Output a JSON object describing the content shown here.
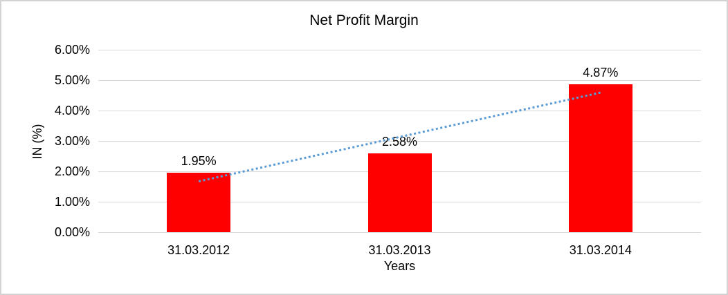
{
  "chart_data": {
    "type": "bar",
    "title": "Net Profit Margin",
    "xlabel": "Years",
    "ylabel": "IN (%)",
    "categories": [
      "31.03.2012",
      "31.03.2013",
      "31.03.2014"
    ],
    "values": [
      1.95,
      2.58,
      4.87
    ],
    "data_labels": [
      "1.95%",
      "2.58%",
      "4.87%"
    ],
    "ytick_labels": [
      "0.00%",
      "1.00%",
      "2.00%",
      "3.00%",
      "4.00%",
      "5.00%",
      "6.00%"
    ],
    "ylim": [
      0,
      6
    ],
    "ystep": 1,
    "grid": true,
    "legend": "none",
    "trendline": {
      "type": "linear",
      "style": "dotted",
      "start_value": 1.67,
      "end_value": 4.59
    },
    "colors": {
      "bar": "#ff0000",
      "trendline": "#5b9bd5",
      "gridline": "#d9d9d9",
      "text": "#000000",
      "frame_border": "#d3d3d3",
      "background": "#ffffff"
    }
  }
}
